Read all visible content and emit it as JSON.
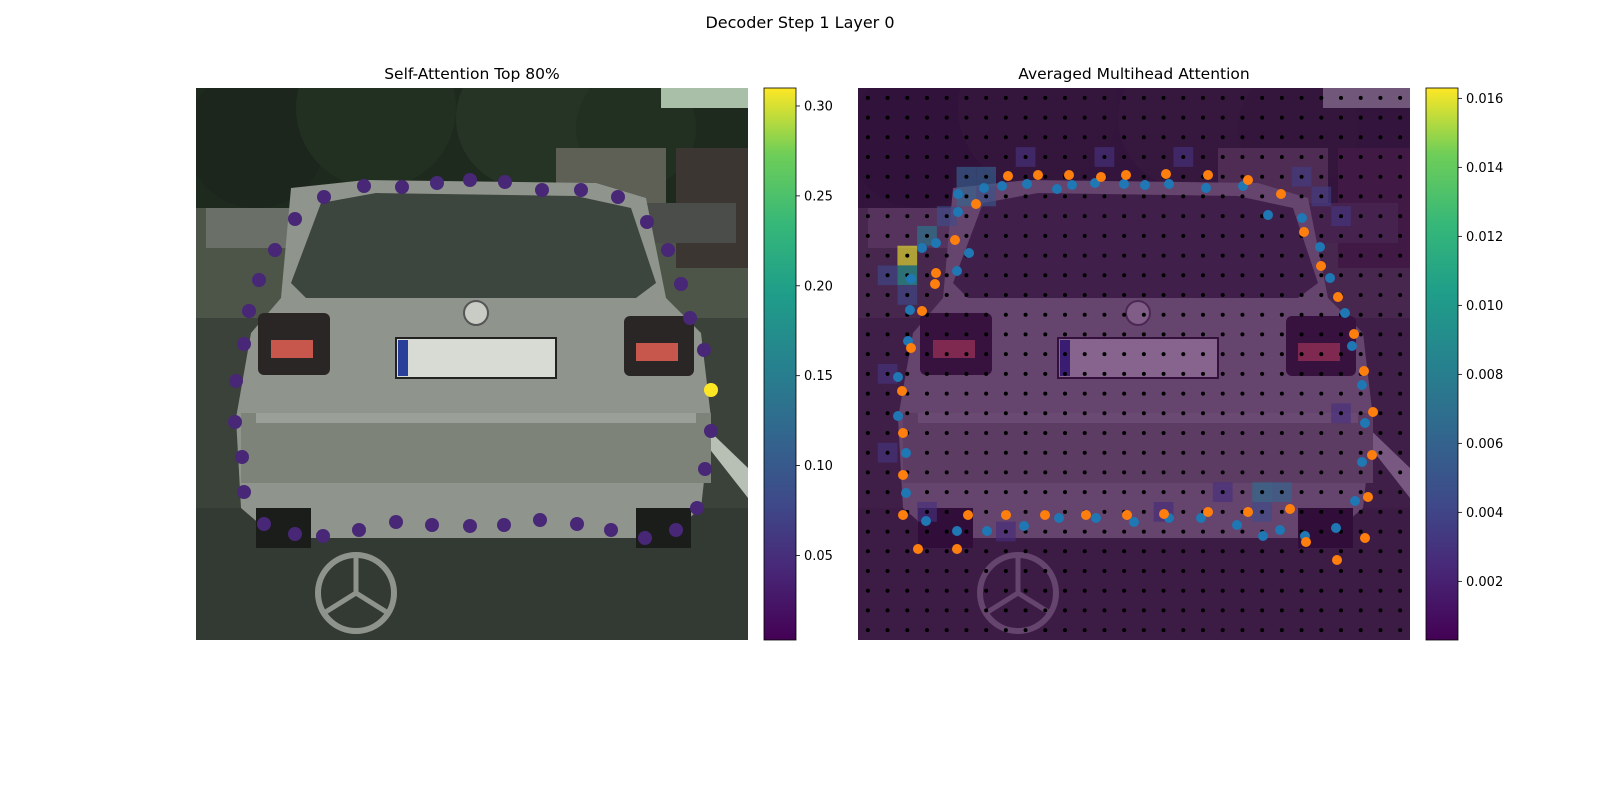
{
  "suptitle": "Decoder Step 1 Layer 0",
  "chart_data": [
    {
      "type": "scatter",
      "title": "Self-Attention Top 80%",
      "background": "car-rear-photo",
      "colormap": "viridis",
      "colorbar": {
        "range": [
          0.003,
          0.31
        ],
        "ticks": [
          0.05,
          0.1,
          0.15,
          0.2,
          0.25,
          0.3
        ],
        "tick_labels": [
          "0.05",
          "0.10",
          "0.15",
          "0.20",
          "0.25",
          "0.30"
        ]
      },
      "points": [
        {
          "x": 128,
          "y": 109,
          "v": 0.04
        },
        {
          "x": 168,
          "y": 98,
          "v": 0.04
        },
        {
          "x": 206,
          "y": 99,
          "v": 0.04
        },
        {
          "x": 241,
          "y": 95,
          "v": 0.045
        },
        {
          "x": 274,
          "y": 92,
          "v": 0.04
        },
        {
          "x": 309,
          "y": 94,
          "v": 0.04
        },
        {
          "x": 346,
          "y": 102,
          "v": 0.04
        },
        {
          "x": 385,
          "y": 102,
          "v": 0.04
        },
        {
          "x": 422,
          "y": 109,
          "v": 0.04
        },
        {
          "x": 451,
          "y": 134,
          "v": 0.04
        },
        {
          "x": 472,
          "y": 162,
          "v": 0.04
        },
        {
          "x": 485,
          "y": 196,
          "v": 0.04
        },
        {
          "x": 494,
          "y": 230,
          "v": 0.04
        },
        {
          "x": 508,
          "y": 262,
          "v": 0.04
        },
        {
          "x": 515,
          "y": 302,
          "v": 0.31
        },
        {
          "x": 515,
          "y": 343,
          "v": 0.04
        },
        {
          "x": 509,
          "y": 381,
          "v": 0.04
        },
        {
          "x": 501,
          "y": 420,
          "v": 0.04
        },
        {
          "x": 480,
          "y": 442,
          "v": 0.04
        },
        {
          "x": 449,
          "y": 450,
          "v": 0.04
        },
        {
          "x": 415,
          "y": 442,
          "v": 0.04
        },
        {
          "x": 381,
          "y": 436,
          "v": 0.04
        },
        {
          "x": 344,
          "y": 432,
          "v": 0.04
        },
        {
          "x": 308,
          "y": 437,
          "v": 0.04
        },
        {
          "x": 274,
          "y": 438,
          "v": 0.04
        },
        {
          "x": 236,
          "y": 437,
          "v": 0.04
        },
        {
          "x": 200,
          "y": 434,
          "v": 0.04
        },
        {
          "x": 163,
          "y": 442,
          "v": 0.04
        },
        {
          "x": 127,
          "y": 448,
          "v": 0.04
        },
        {
          "x": 99,
          "y": 446,
          "v": 0.04
        },
        {
          "x": 68,
          "y": 436,
          "v": 0.04
        },
        {
          "x": 48,
          "y": 404,
          "v": 0.04
        },
        {
          "x": 46,
          "y": 369,
          "v": 0.04
        },
        {
          "x": 39,
          "y": 334,
          "v": 0.04
        },
        {
          "x": 40,
          "y": 293,
          "v": 0.04
        },
        {
          "x": 48,
          "y": 256,
          "v": 0.04
        },
        {
          "x": 53,
          "y": 223,
          "v": 0.04
        },
        {
          "x": 63,
          "y": 192,
          "v": 0.04
        },
        {
          "x": 79,
          "y": 162,
          "v": 0.04
        },
        {
          "x": 99,
          "y": 131,
          "v": 0.04
        }
      ]
    },
    {
      "type": "heatmap",
      "title": "Averaged Multihead Attention",
      "background": "car-rear-photo",
      "colormap": "viridis",
      "colorbar": {
        "range": [
          0.0003,
          0.0163
        ],
        "ticks": [
          0.002,
          0.004,
          0.006,
          0.008,
          0.01,
          0.012,
          0.014,
          0.016
        ],
        "tick_labels": [
          "0.002",
          "0.004",
          "0.006",
          "0.008",
          "0.010",
          "0.012",
          "0.014",
          "0.016"
        ]
      },
      "grid": {
        "cols": 28,
        "rows": 28
      },
      "hot_cells": [
        {
          "c": 2,
          "r": 8,
          "v": 0.016
        },
        {
          "c": 2,
          "r": 9,
          "v": 0.01
        },
        {
          "c": 3,
          "r": 7,
          "v": 0.0075
        },
        {
          "c": 5,
          "r": 4,
          "v": 0.0058
        },
        {
          "c": 6,
          "r": 4,
          "v": 0.0058
        },
        {
          "c": 5,
          "r": 5,
          "v": 0.0062
        },
        {
          "c": 6,
          "r": 5,
          "v": 0.005
        },
        {
          "c": 4,
          "r": 6,
          "v": 0.0045
        },
        {
          "c": 1,
          "r": 9,
          "v": 0.0042
        },
        {
          "c": 2,
          "r": 10,
          "v": 0.0042
        },
        {
          "c": 20,
          "r": 20,
          "v": 0.0068
        },
        {
          "c": 21,
          "r": 20,
          "v": 0.0062
        },
        {
          "c": 20,
          "r": 21,
          "v": 0.0045
        },
        {
          "c": 22,
          "r": 4,
          "v": 0.0035
        },
        {
          "c": 23,
          "r": 5,
          "v": 0.0035
        },
        {
          "c": 24,
          "r": 6,
          "v": 0.003
        },
        {
          "c": 1,
          "r": 14,
          "v": 0.003
        },
        {
          "c": 1,
          "r": 18,
          "v": 0.003
        },
        {
          "c": 24,
          "r": 16,
          "v": 0.0028
        },
        {
          "c": 8,
          "r": 3,
          "v": 0.0028
        },
        {
          "c": 12,
          "r": 3,
          "v": 0.0028
        },
        {
          "c": 16,
          "r": 3,
          "v": 0.0028
        },
        {
          "c": 3,
          "r": 21,
          "v": 0.0028
        },
        {
          "c": 7,
          "r": 22,
          "v": 0.0026
        },
        {
          "c": 15,
          "r": 21,
          "v": 0.0026
        },
        {
          "c": 18,
          "r": 20,
          "v": 0.0028
        }
      ],
      "blue_points": [
        [
          99,
          183
        ],
        [
          111,
          165
        ],
        [
          100,
          124
        ],
        [
          100,
          106
        ],
        [
          126,
          100
        ],
        [
          144,
          98
        ],
        [
          169,
          96
        ],
        [
          199,
          101
        ],
        [
          214,
          97
        ],
        [
          237,
          95
        ],
        [
          266,
          96
        ],
        [
          287,
          97
        ],
        [
          311,
          96
        ],
        [
          348,
          100
        ],
        [
          385,
          98
        ],
        [
          410,
          127
        ],
        [
          444,
          130
        ],
        [
          462,
          159
        ],
        [
          472,
          190
        ],
        [
          487,
          225
        ],
        [
          494,
          258
        ],
        [
          504,
          297
        ],
        [
          507,
          335
        ],
        [
          504,
          374
        ],
        [
          497,
          413
        ],
        [
          478,
          440
        ],
        [
          447,
          448
        ],
        [
          422,
          442
        ],
        [
          405,
          448
        ],
        [
          379,
          437
        ],
        [
          343,
          430
        ],
        [
          311,
          430
        ],
        [
          276,
          434
        ],
        [
          238,
          430
        ],
        [
          201,
          430
        ],
        [
          166,
          438
        ],
        [
          129,
          443
        ],
        [
          99,
          443
        ],
        [
          68,
          433
        ],
        [
          48,
          405
        ],
        [
          48,
          365
        ],
        [
          40,
          328
        ],
        [
          40,
          289
        ],
        [
          50,
          253
        ],
        [
          52,
          222
        ],
        [
          53,
          191
        ],
        [
          64,
          160
        ],
        [
          78,
          155
        ]
      ],
      "orange_points": [
        [
          118,
          116
        ],
        [
          150,
          88
        ],
        [
          180,
          87
        ],
        [
          211,
          87
        ],
        [
          243,
          89
        ],
        [
          268,
          87
        ],
        [
          308,
          86
        ],
        [
          350,
          87
        ],
        [
          390,
          92
        ],
        [
          423,
          106
        ],
        [
          446,
          144
        ],
        [
          463,
          178
        ],
        [
          480,
          209
        ],
        [
          496,
          246
        ],
        [
          506,
          283
        ],
        [
          515,
          324
        ],
        [
          514,
          367
        ],
        [
          510,
          409
        ],
        [
          507,
          450
        ],
        [
          479,
          472
        ],
        [
          448,
          454
        ],
        [
          432,
          421
        ],
        [
          390,
          424
        ],
        [
          350,
          424
        ],
        [
          306,
          426
        ],
        [
          269,
          427
        ],
        [
          228,
          427
        ],
        [
          187,
          427
        ],
        [
          148,
          427
        ],
        [
          110,
          427
        ],
        [
          99,
          461
        ],
        [
          60,
          461
        ],
        [
          45,
          427
        ],
        [
          45,
          387
        ],
        [
          45,
          345
        ],
        [
          44,
          303
        ],
        [
          53,
          260
        ],
        [
          64,
          223
        ],
        [
          78,
          185
        ],
        [
          97,
          152
        ],
        [
          77,
          196
        ]
      ]
    }
  ]
}
